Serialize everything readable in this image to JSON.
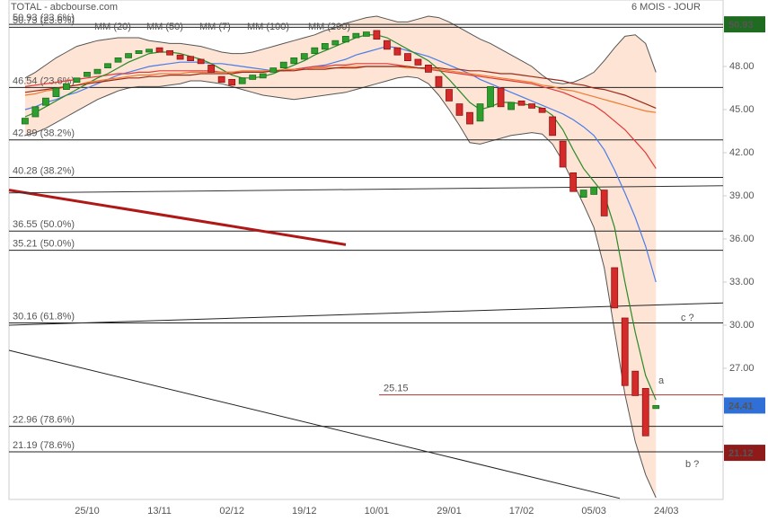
{
  "header": {
    "title": "TOTAL - abcbourse.com",
    "period": "6 MOIS - JOUR"
  },
  "chart_data": {
    "type": "candlestick",
    "categories": [
      null,
      null,
      null,
      null,
      null,
      null,
      "25/10",
      null,
      null,
      null,
      null,
      null,
      null,
      "13/11",
      null,
      null,
      null,
      null,
      null,
      null,
      "02/12",
      null,
      null,
      null,
      null,
      null,
      null,
      "19/12",
      null,
      null,
      null,
      null,
      null,
      null,
      "10/01",
      null,
      null,
      null,
      null,
      null,
      null,
      "29/01",
      null,
      null,
      null,
      null,
      null,
      null,
      "17/02",
      null,
      null,
      null,
      null,
      null,
      null,
      "05/03",
      null,
      null,
      null,
      null,
      null,
      null,
      "24/03"
    ],
    "open": [
      44.0,
      44.5,
      45.3,
      45.9,
      46.4,
      46.9,
      47.3,
      47.5,
      47.9,
      48.3,
      48.6,
      48.9,
      49.0,
      49.3,
      49.1,
      48.8,
      48.7,
      48.5,
      48.1,
      47.3,
      47.1,
      46.8,
      47.1,
      47.2,
      47.6,
      47.9,
      48.2,
      48.5,
      48.9,
      49.2,
      49.5,
      49.7,
      50.0,
      50.1,
      50.5,
      49.8,
      49.3,
      48.9,
      48.5,
      48.1,
      47.3,
      46.4,
      45.4,
      44.8,
      44.2,
      45.2,
      46.5,
      45.0,
      45.6,
      45.4,
      45.1,
      44.5,
      42.8,
      40.6,
      38.9,
      39.1,
      39.4,
      34.0,
      30.5,
      26.8,
      25.6,
      24.2,
      null
    ],
    "close": [
      44.4,
      45.2,
      45.8,
      46.5,
      46.8,
      47.2,
      47.6,
      47.8,
      48.2,
      48.6,
      48.9,
      49.1,
      49.2,
      49.0,
      48.8,
      48.5,
      48.4,
      48.2,
      47.6,
      46.9,
      46.7,
      47.2,
      47.4,
      47.5,
      47.9,
      48.3,
      48.6,
      48.9,
      49.3,
      49.6,
      49.8,
      50.1,
      50.3,
      50.4,
      49.9,
      49.2,
      48.8,
      48.4,
      48.1,
      47.6,
      46.6,
      45.6,
      44.6,
      44.0,
      45.4,
      46.6,
      45.2,
      45.5,
      45.3,
      45.1,
      44.8,
      43.2,
      41.0,
      39.3,
      39.4,
      39.6,
      37.6,
      31.2,
      25.8,
      25.1,
      22.3,
      24.41,
      null
    ],
    "colors": {
      "up": "#2e9e2e",
      "down": "#d42a2a"
    },
    "overlays": [
      {
        "name": "MM (20)",
        "color": "#4a7de8",
        "values": [
          45.0,
          45.2,
          45.5,
          45.7,
          46.0,
          46.2,
          46.5,
          46.8,
          47.1,
          47.4,
          47.6,
          47.8,
          48.0,
          48.1,
          48.2,
          48.3,
          48.3,
          48.3,
          48.2,
          48.2,
          48.1,
          48.0,
          47.9,
          47.8,
          47.7,
          47.7,
          47.8,
          47.9,
          48.0,
          48.1,
          48.3,
          48.5,
          48.8,
          49.0,
          49.2,
          49.4,
          49.3,
          49.1,
          48.9,
          48.7,
          48.4,
          48.1,
          47.8,
          47.5,
          47.1,
          46.8,
          46.5,
          46.2,
          45.9,
          45.6,
          45.3,
          45.0,
          44.7,
          44.3,
          43.8,
          43.2,
          42.2,
          40.8,
          39.2,
          37.5,
          35.5,
          33.0,
          null
        ]
      },
      {
        "name": "MM (50)",
        "color": "#e03a3a",
        "values": [
          46.6,
          46.7,
          46.8,
          46.9,
          47.0,
          47.1,
          47.2,
          47.3,
          47.4,
          47.5,
          47.5,
          47.6,
          47.6,
          47.7,
          47.7,
          47.7,
          47.7,
          47.7,
          47.7,
          47.6,
          47.6,
          47.6,
          47.6,
          47.6,
          47.7,
          47.7,
          47.8,
          47.9,
          48.0,
          48.0,
          48.1,
          48.1,
          48.2,
          48.2,
          48.2,
          48.2,
          48.1,
          48.0,
          47.9,
          47.8,
          47.7,
          47.6,
          47.5,
          47.4,
          47.3,
          47.2,
          47.1,
          47.0,
          46.9,
          46.8,
          46.6,
          46.4,
          46.2,
          45.9,
          45.6,
          45.3,
          44.8,
          44.2,
          43.6,
          42.8,
          42.0,
          40.9,
          null
        ]
      },
      {
        "name": "MM (7)",
        "color": "#2a8a2a",
        "values": [
          44.5,
          44.8,
          45.2,
          45.6,
          46.0,
          46.4,
          46.8,
          47.2,
          47.5,
          47.9,
          48.3,
          48.6,
          48.9,
          49.0,
          49.0,
          48.9,
          48.7,
          48.5,
          48.2,
          47.8,
          47.4,
          47.2,
          47.2,
          47.3,
          47.5,
          47.8,
          48.1,
          48.4,
          48.8,
          49.1,
          49.4,
          49.7,
          50.0,
          50.2,
          50.2,
          50.0,
          49.6,
          49.2,
          48.8,
          48.4,
          47.8,
          47.1,
          46.3,
          45.5,
          45.0,
          45.2,
          45.5,
          45.5,
          45.4,
          45.3,
          45.1,
          44.6,
          43.6,
          42.2,
          40.9,
          40.0,
          39.1,
          36.8,
          33.0,
          29.5,
          26.5,
          24.8,
          null
        ]
      },
      {
        "name": "MM (100)",
        "color": "#f07a30",
        "values": [
          46.0,
          46.1,
          46.3,
          46.4,
          46.6,
          46.7,
          46.9,
          47.0,
          47.1,
          47.2,
          47.3,
          47.4,
          47.4,
          47.5,
          47.5,
          47.5,
          47.6,
          47.6,
          47.6,
          47.6,
          47.6,
          47.7,
          47.7,
          47.7,
          47.7,
          47.8,
          47.8,
          47.8,
          47.9,
          47.9,
          47.9,
          48.0,
          48.0,
          48.0,
          48.0,
          48.0,
          48.0,
          47.9,
          47.9,
          47.8,
          47.8,
          47.7,
          47.6,
          47.5,
          47.4,
          47.3,
          47.2,
          47.1,
          47.0,
          46.9,
          46.7,
          46.6,
          46.4,
          46.3,
          46.1,
          45.9,
          45.7,
          45.5,
          45.3,
          45.1,
          44.9,
          44.8,
          null
        ]
      },
      {
        "name": "MM (200)",
        "color": "#9a2a1a",
        "values": [
          46.2,
          46.3,
          46.4,
          46.5,
          46.6,
          46.7,
          46.8,
          46.9,
          47.0,
          47.1,
          47.2,
          47.2,
          47.3,
          47.3,
          47.4,
          47.4,
          47.4,
          47.5,
          47.5,
          47.5,
          47.5,
          47.6,
          47.6,
          47.6,
          47.7,
          47.7,
          47.7,
          47.8,
          47.8,
          47.8,
          47.9,
          47.9,
          47.9,
          48.0,
          48.0,
          48.0,
          48.0,
          48.0,
          47.9,
          47.9,
          47.9,
          47.8,
          47.8,
          47.7,
          47.7,
          47.6,
          47.5,
          47.5,
          47.4,
          47.3,
          47.2,
          47.1,
          47.0,
          46.8,
          46.7,
          46.5,
          46.4,
          46.2,
          46.0,
          45.7,
          45.4,
          45.1,
          null
        ]
      }
    ],
    "bands": {
      "color": "#555555",
      "fill": "#fde4d4",
      "upper": [
        47.2,
        47.6,
        48.1,
        48.6,
        49.0,
        49.4,
        49.6,
        49.8,
        49.9,
        50.0,
        50.0,
        50.0,
        49.8,
        49.7,
        49.6,
        49.6,
        49.5,
        49.4,
        49.2,
        49.0,
        48.9,
        48.9,
        49.0,
        49.2,
        49.4,
        49.6,
        49.8,
        50.0,
        50.2,
        50.5,
        50.7,
        51.0,
        51.2,
        51.4,
        51.5,
        51.3,
        51.1,
        51.1,
        51.3,
        51.5,
        51.4,
        51.1,
        50.7,
        50.3,
        49.9,
        49.6,
        49.2,
        48.8,
        48.4,
        48.0,
        47.4,
        46.9,
        46.8,
        46.9,
        47.2,
        47.6,
        48.4,
        49.3,
        50.1,
        50.2,
        49.6,
        47.6,
        null
      ],
      "lower": [
        43.2,
        43.4,
        43.7,
        44.1,
        44.5,
        44.9,
        45.3,
        45.7,
        46.0,
        46.3,
        46.5,
        46.6,
        46.6,
        46.6,
        46.7,
        46.8,
        47.0,
        47.0,
        46.9,
        46.8,
        46.6,
        46.4,
        46.2,
        46.0,
        45.9,
        45.8,
        45.7,
        45.8,
        45.9,
        46.0,
        46.1,
        46.2,
        46.4,
        46.6,
        46.8,
        47.0,
        47.2,
        47.3,
        47.2,
        46.8,
        46.0,
        45.0,
        43.9,
        42.7,
        42.6,
        42.8,
        43.0,
        43.2,
        43.3,
        43.4,
        43.3,
        42.6,
        41.4,
        39.9,
        38.4,
        36.8,
        34.0,
        29.6,
        25.2,
        21.9,
        19.6,
        18.0,
        null
      ]
    },
    "levels": [
      {
        "value": 50.93,
        "label": "50.93 (23.6%)"
      },
      {
        "value": 50.73,
        "label": "50.73 (23.6%)"
      },
      {
        "value": 46.54,
        "label": "46.54 (23.6%)"
      },
      {
        "value": 42.89,
        "label": "42.89 (38.2%)"
      },
      {
        "value": 40.28,
        "label": "40.28 (38.2%)"
      },
      {
        "value": 36.55,
        "label": "36.55 (50.0%)"
      },
      {
        "value": 35.21,
        "label": "35.21 (50.0%)"
      },
      {
        "value": 30.16,
        "label": "30.16 (61.8%)"
      },
      {
        "value": 22.96,
        "label": "22.96 (78.6%)"
      },
      {
        "value": 21.19,
        "label": "21.19 (78.6%)"
      }
    ],
    "resistance": {
      "value": 25.15,
      "label": "25.15",
      "color": "#b03030"
    },
    "trendlines": [
      {
        "from": 39.4,
        "to": 35.6,
        "color": "#b01818"
      },
      {
        "from": 39.2,
        "to": 39.7,
        "color": "#333333"
      },
      {
        "from": 30.0,
        "to": 31.55,
        "color": "#222222"
      },
      {
        "from": 28.25,
        "to": 17.95,
        "color": "#222222"
      }
    ],
    "badges": [
      {
        "value": 50.93,
        "label": "50.93",
        "color": "#1f6b1f"
      },
      {
        "value": 24.41,
        "label": "24.41",
        "color": "#2f6fd6"
      },
      {
        "value": 21.12,
        "label": "21.12",
        "color": "#8e1a1a"
      }
    ],
    "annotations": [
      "a",
      "b ?",
      "c ?"
    ],
    "ylim": [
      17.875,
      52.625
    ],
    "yticks": [
      {
        "value": 27,
        "label": "27.00"
      },
      {
        "value": 30,
        "label": "30.00"
      },
      {
        "value": 33,
        "label": "33.00"
      },
      {
        "value": 36,
        "label": "36.00"
      },
      {
        "value": 39,
        "label": "39.00"
      },
      {
        "value": 42,
        "label": "42.00"
      },
      {
        "value": 45,
        "label": "45.00"
      },
      {
        "value": 48,
        "label": "48.00"
      }
    ],
    "grid": false
  }
}
